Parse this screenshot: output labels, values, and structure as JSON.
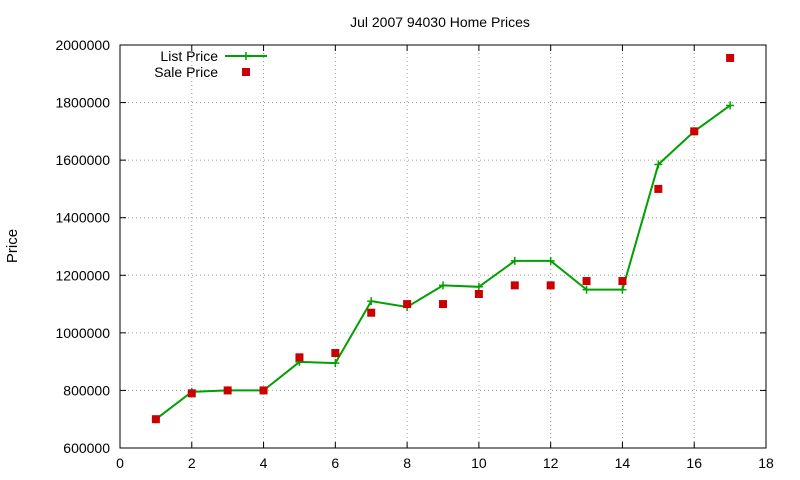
{
  "chart_data": {
    "type": "line",
    "title": "Jul 2007 94030 Home Prices",
    "xlabel": "",
    "ylabel": "Price",
    "xlim": [
      0,
      18
    ],
    "ylim": [
      600000,
      2000000
    ],
    "xticks": [
      0,
      2,
      4,
      6,
      8,
      10,
      12,
      14,
      16,
      18
    ],
    "yticks": [
      600000,
      800000,
      1000000,
      1200000,
      1400000,
      1600000,
      1800000,
      2000000
    ],
    "xtick_labels": [
      "0",
      "2",
      "4",
      "6",
      "8",
      "10",
      "12",
      "14",
      "16",
      "18"
    ],
    "ytick_labels": [
      "600000",
      "800000",
      "1000000",
      "1200000",
      "1400000",
      "1600000",
      "1800000",
      "2000000"
    ],
    "grid": true,
    "legend_position": "top-left",
    "series": [
      {
        "name": "List Price",
        "style": "line-with-plus-markers",
        "color": "#00a000",
        "x": [
          1,
          2,
          3,
          4,
          5,
          6,
          7,
          8,
          9,
          10,
          11,
          12,
          13,
          14,
          15,
          16,
          17
        ],
        "y": [
          700000,
          795000,
          800000,
          800000,
          899000,
          895000,
          1110000,
          1090000,
          1165000,
          1160000,
          1250000,
          1250000,
          1150000,
          1150000,
          1585000,
          1700000,
          1790000
        ]
      },
      {
        "name": "Sale Price",
        "style": "square-markers",
        "color": "#cc0000",
        "x": [
          1,
          2,
          3,
          4,
          5,
          6,
          7,
          8,
          9,
          10,
          11,
          12,
          13,
          14,
          15,
          16,
          17
        ],
        "y": [
          700000,
          790000,
          800000,
          800000,
          915000,
          930000,
          1070000,
          1100000,
          1100000,
          1135000,
          1165000,
          1165000,
          1180000,
          1180000,
          1500000,
          1700000,
          1955000
        ]
      }
    ]
  }
}
